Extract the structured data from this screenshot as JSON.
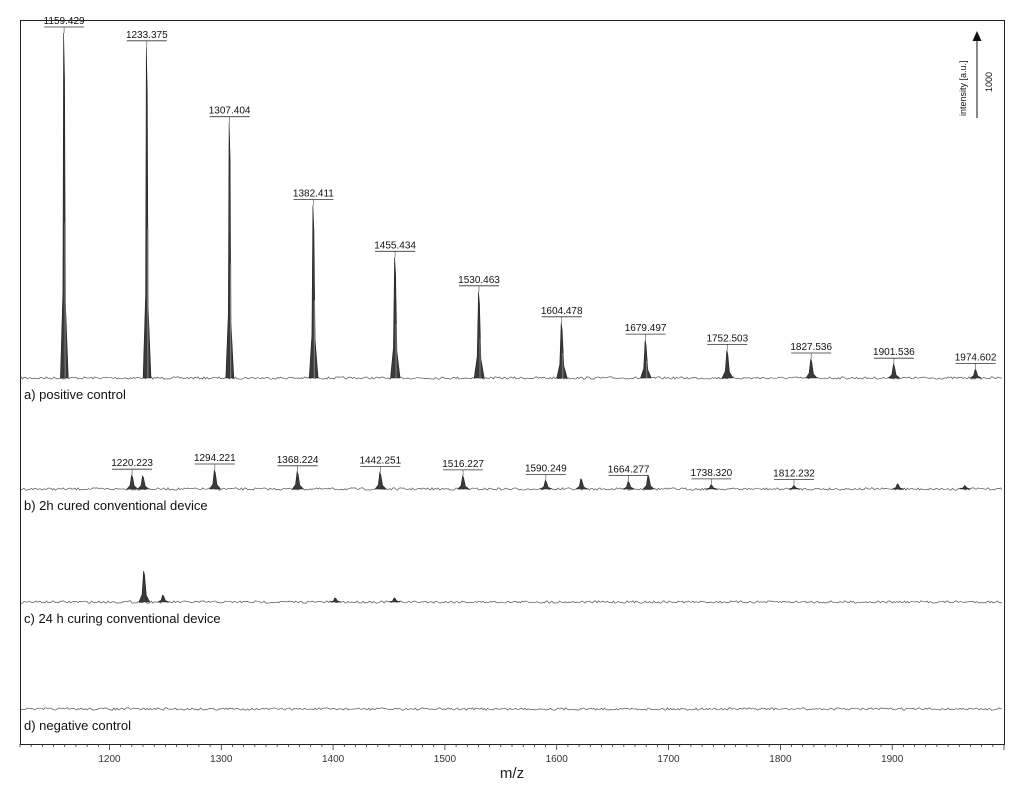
{
  "chart_data": {
    "type": "line",
    "title": "",
    "xlabel": "m/z",
    "ylabel": "",
    "xlim": [
      1120,
      2000
    ],
    "x_ticks": [
      1200,
      1300,
      1400,
      1500,
      1600,
      1700,
      1800,
      1900
    ],
    "grid": false,
    "intensity_scale": {
      "label": "intensity [a.u.]",
      "value": "1000"
    },
    "panels": [
      {
        "label": "a) positive control",
        "peaks": [
          {
            "x": 1159.429,
            "y": 1000,
            "label": "1159.429"
          },
          {
            "x": 1233.375,
            "y": 960,
            "label": "1233.375"
          },
          {
            "x": 1307.404,
            "y": 740,
            "label": "1307.404"
          },
          {
            "x": 1382.411,
            "y": 500,
            "label": "1382.411"
          },
          {
            "x": 1455.434,
            "y": 350,
            "label": "1455.434"
          },
          {
            "x": 1530.463,
            "y": 250,
            "label": "1530.463"
          },
          {
            "x": 1604.478,
            "y": 160,
            "label": "1604.478"
          },
          {
            "x": 1679.497,
            "y": 110,
            "label": "1679.497"
          },
          {
            "x": 1752.503,
            "y": 80,
            "label": "1752.503"
          },
          {
            "x": 1827.536,
            "y": 55,
            "label": "1827.536"
          },
          {
            "x": 1901.536,
            "y": 40,
            "label": "1901.536"
          },
          {
            "x": 1974.602,
            "y": 25,
            "label": "1974.602"
          }
        ]
      },
      {
        "label": "b) 2h cured conventional device",
        "peaks": [
          {
            "x": 1220.223,
            "y": 40,
            "label": "1220.223"
          },
          {
            "x": 1230.0,
            "y": 38,
            "label": ""
          },
          {
            "x": 1294.221,
            "y": 55,
            "label": "1294.221"
          },
          {
            "x": 1368.224,
            "y": 50,
            "label": "1368.224"
          },
          {
            "x": 1442.251,
            "y": 48,
            "label": "1442.251"
          },
          {
            "x": 1516.227,
            "y": 38,
            "label": "1516.227"
          },
          {
            "x": 1590.249,
            "y": 25,
            "label": "1590.249"
          },
          {
            "x": 1622.0,
            "y": 30,
            "label": ""
          },
          {
            "x": 1664.277,
            "y": 22,
            "label": "1664.277"
          },
          {
            "x": 1682.0,
            "y": 40,
            "label": ""
          },
          {
            "x": 1738.32,
            "y": 12,
            "label": "1738.320"
          },
          {
            "x": 1812.232,
            "y": 10,
            "label": "1812.232"
          },
          {
            "x": 1905.0,
            "y": 15,
            "label": ""
          },
          {
            "x": 1965.0,
            "y": 10,
            "label": ""
          }
        ]
      },
      {
        "label": "c) 24 h curing conventional device",
        "peaks": [
          {
            "x": 1231.0,
            "y": 90,
            "label": ""
          },
          {
            "x": 1248.0,
            "y": 20,
            "label": ""
          },
          {
            "x": 1402.0,
            "y": 12,
            "label": ""
          },
          {
            "x": 1455.0,
            "y": 12,
            "label": ""
          }
        ]
      },
      {
        "label": "d) negative control",
        "peaks": []
      }
    ]
  }
}
